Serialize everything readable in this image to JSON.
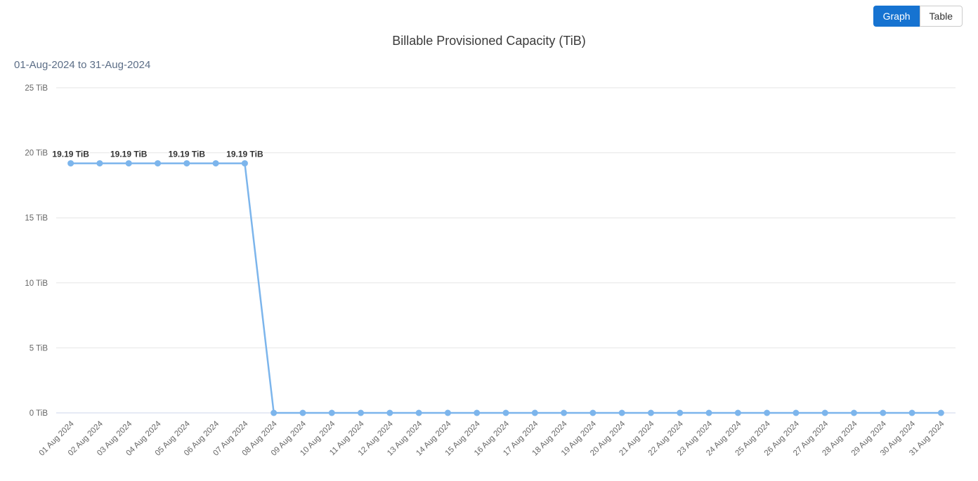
{
  "toolbar": {
    "graph_label": "Graph",
    "table_label": "Table",
    "active_view": "Graph",
    "active_bg_color": "#1673d1"
  },
  "chart_data": {
    "type": "line",
    "title": "Billable Provisioned Capacity (TiB)",
    "subtitle": "01-Aug-2024 to 31-Aug-2024",
    "unit": "TiB",
    "categories": [
      "01 Aug 2024",
      "02 Aug 2024",
      "03 Aug 2024",
      "04 Aug 2024",
      "05 Aug 2024",
      "06 Aug 2024",
      "07 Aug 2024",
      "08 Aug 2024",
      "09 Aug 2024",
      "10 Aug 2024",
      "11 Aug 2024",
      "12 Aug 2024",
      "13 Aug 2024",
      "14 Aug 2024",
      "15 Aug 2024",
      "16 Aug 2024",
      "17 Aug 2024",
      "18 Aug 2024",
      "19 Aug 2024",
      "20 Aug 2024",
      "21 Aug 2024",
      "22 Aug 2024",
      "23 Aug 2024",
      "24 Aug 2024",
      "25 Aug 2024",
      "26 Aug 2024",
      "27 Aug 2024",
      "28 Aug 2024",
      "29 Aug 2024",
      "30 Aug 2024",
      "31 Aug 2024"
    ],
    "values": [
      19.19,
      19.19,
      19.19,
      19.19,
      19.19,
      19.19,
      19.19,
      0,
      0,
      0,
      0,
      0,
      0,
      0,
      0,
      0,
      0,
      0,
      0,
      0,
      0,
      0,
      0,
      0,
      0,
      0,
      0,
      0,
      0,
      0,
      0
    ],
    "data_labels": [
      {
        "index": 0,
        "text": "19.19 TiB"
      },
      {
        "index": 2,
        "text": "19.19 TiB"
      },
      {
        "index": 4,
        "text": "19.19 TiB"
      },
      {
        "index": 6,
        "text": "19.19 TiB"
      }
    ],
    "ylim": [
      0,
      25
    ],
    "yticks": [
      0,
      5,
      10,
      15,
      20,
      25
    ],
    "ytick_format": "{value} TiB",
    "x_label_rotation": -45,
    "legend": "off",
    "grid": "on",
    "series_color": "#7cb5ec",
    "grid_color": "#e6e6e6",
    "axis_line_color": "#ccd6eb",
    "label_color": "#666666",
    "data_label_color": "#333333"
  }
}
